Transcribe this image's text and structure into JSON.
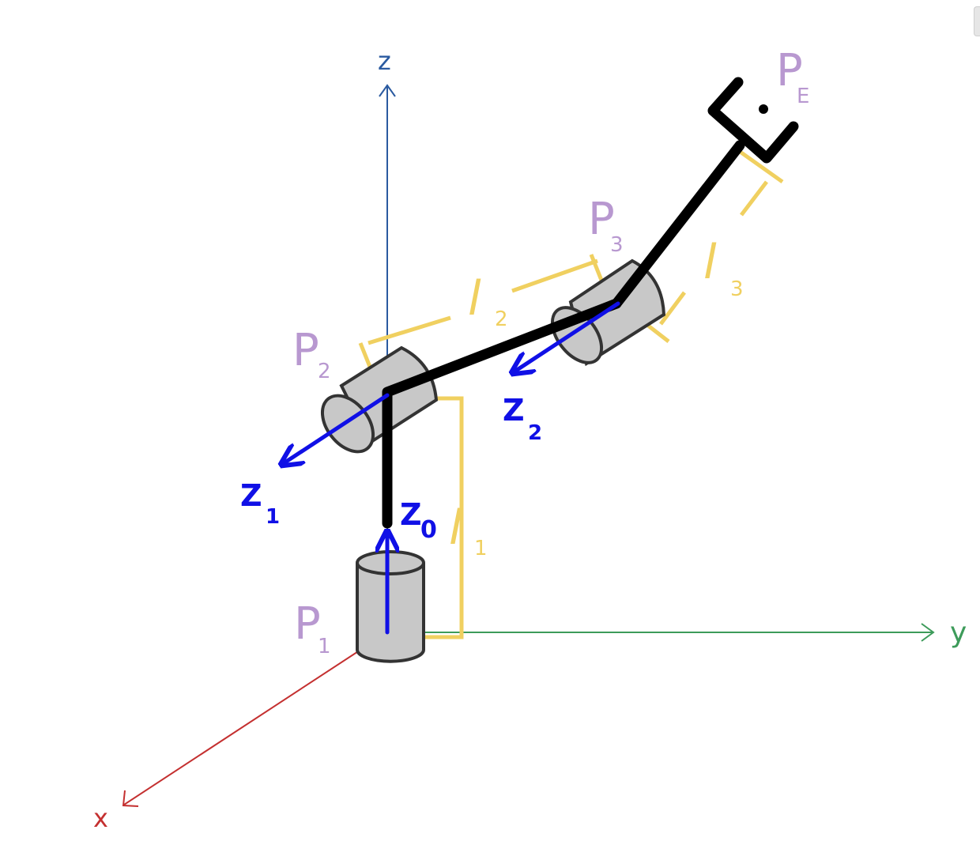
{
  "colors": {
    "z_axis": "#2a5aa0",
    "y_axis": "#3d9b5a",
    "x_axis": "#c43030",
    "link": "#000000",
    "joint_axis": "#1010e6",
    "dimension": "#f0d060",
    "point_label": "#b898d0",
    "joint_fill": "#c8c8c8",
    "joint_stroke": "#333333"
  },
  "axes": {
    "z": "z",
    "y": "y",
    "x": "x"
  },
  "points": {
    "p1": "P",
    "p1_sub": "1",
    "p2": "P",
    "p2_sub": "2",
    "p3": "P",
    "p3_sub": "3",
    "pe": "P",
    "pe_sub": "E"
  },
  "joint_axes": {
    "z0": "Z",
    "z0_sub": "0",
    "z1": "Z",
    "z1_sub": "1",
    "z2": "Z",
    "z2_sub": "2"
  },
  "lengths": {
    "l1": "l",
    "l1_sub": "1",
    "l2": "l",
    "l2_sub": "2",
    "l3": "l",
    "l3_sub": "3"
  }
}
